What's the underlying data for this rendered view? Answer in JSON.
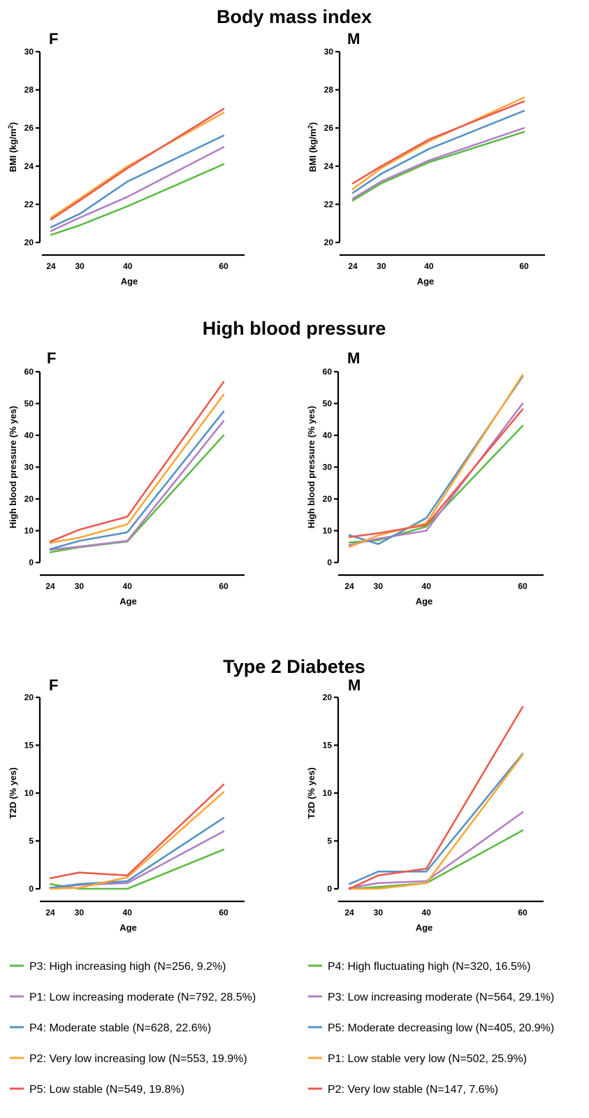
{
  "colors": {
    "green": "#5dbb46",
    "purple": "#b27fc6",
    "blue": "#5592c4",
    "orange": "#f9a63a",
    "red": "#ee5a4e"
  },
  "chart_data": [
    {
      "type": "line",
      "section": "bmi",
      "section_title": "Body mass index",
      "panel_label": "F",
      "xlabel": "Age",
      "ylabel": "BMI (kg/m",
      "ylabel_superscript": "2",
      "ylabel_suffix": ")",
      "x": [
        24,
        30,
        40,
        60
      ],
      "xticks": [
        24,
        30,
        40,
        60
      ],
      "xlim": [
        22,
        66
      ],
      "ylim": [
        20,
        30
      ],
      "yticks": [
        20,
        22,
        24,
        26,
        28,
        30
      ],
      "series": [
        {
          "color": "green",
          "values": [
            20.4,
            20.9,
            21.9,
            24.1
          ]
        },
        {
          "color": "purple",
          "values": [
            20.6,
            21.3,
            22.4,
            25.0
          ]
        },
        {
          "color": "blue",
          "values": [
            20.8,
            21.5,
            23.2,
            25.6
          ]
        },
        {
          "color": "orange",
          "values": [
            21.3,
            22.3,
            24.0,
            26.8
          ]
        },
        {
          "color": "red",
          "values": [
            21.2,
            22.2,
            23.9,
            27.0
          ]
        }
      ]
    },
    {
      "type": "line",
      "section": "bmi",
      "panel_label": "M",
      "xlabel": "Age",
      "ylabel": "BMI (kg/m",
      "ylabel_superscript": "2",
      "ylabel_suffix": ")",
      "x": [
        24,
        30,
        40,
        60
      ],
      "xticks": [
        24,
        30,
        40,
        60
      ],
      "xlim": [
        22,
        66
      ],
      "ylim": [
        20,
        30
      ],
      "yticks": [
        20,
        22,
        24,
        26,
        28,
        30
      ],
      "series": [
        {
          "color": "green",
          "values": [
            22.2,
            23.1,
            24.2,
            25.8
          ]
        },
        {
          "color": "purple",
          "values": [
            22.3,
            23.2,
            24.3,
            26.0
          ]
        },
        {
          "color": "blue",
          "values": [
            22.6,
            23.6,
            24.9,
            26.9
          ]
        },
        {
          "color": "orange",
          "values": [
            22.8,
            23.9,
            25.3,
            27.6
          ]
        },
        {
          "color": "red",
          "values": [
            23.1,
            24.0,
            25.4,
            27.4
          ]
        }
      ]
    },
    {
      "type": "line",
      "section": "bp",
      "section_title": "High blood pressure",
      "panel_label": "F",
      "xlabel": "Age",
      "ylabel": "High blood pressure (% yes)",
      "x": [
        24,
        30,
        40,
        60
      ],
      "xticks": [
        24,
        30,
        40,
        60
      ],
      "xlim": [
        22,
        66
      ],
      "ylim": [
        0,
        60
      ],
      "yticks": [
        0,
        10,
        20,
        30,
        40,
        50,
        60
      ],
      "series": [
        {
          "color": "green",
          "values": [
            3.2,
            4.8,
            6.6,
            40.0
          ]
        },
        {
          "color": "purple",
          "values": [
            4.0,
            5.0,
            6.8,
            44.5
          ]
        },
        {
          "color": "blue",
          "values": [
            4.2,
            6.8,
            9.5,
            47.5
          ]
        },
        {
          "color": "orange",
          "values": [
            6.2,
            7.8,
            12.0,
            52.8
          ]
        },
        {
          "color": "red",
          "values": [
            6.6,
            10.3,
            14.4,
            56.8
          ]
        }
      ]
    },
    {
      "type": "line",
      "section": "bp",
      "panel_label": "M",
      "xlabel": "Age",
      "ylabel": "High blood pressure (% yes)",
      "x": [
        24,
        30,
        40,
        60
      ],
      "xticks": [
        24,
        30,
        40,
        60
      ],
      "xlim": [
        22,
        66
      ],
      "ylim": [
        0,
        60
      ],
      "yticks": [
        0,
        10,
        20,
        30,
        40,
        50,
        60
      ],
      "series": [
        {
          "color": "green",
          "values": [
            6.3,
            7.0,
            11.3,
            43.0
          ]
        },
        {
          "color": "purple",
          "values": [
            5.5,
            7.5,
            10.0,
            50.0
          ]
        },
        {
          "color": "blue",
          "values": [
            8.6,
            5.8,
            14.0,
            58.5
          ]
        },
        {
          "color": "orange",
          "values": [
            4.9,
            8.5,
            12.4,
            59.0
          ]
        },
        {
          "color": "red",
          "values": [
            8.0,
            9.2,
            11.8,
            48.2
          ]
        }
      ]
    },
    {
      "type": "line",
      "section": "t2d",
      "section_title": "Type 2 Diabetes",
      "panel_label": "F",
      "xlabel": "Age",
      "ylabel": "T2D (% yes)",
      "x": [
        24,
        30,
        40,
        60
      ],
      "xticks": [
        24,
        30,
        40,
        60
      ],
      "xlim": [
        22,
        66
      ],
      "ylim": [
        0,
        20
      ],
      "yticks": [
        0,
        5,
        10,
        15,
        20
      ],
      "series": [
        {
          "color": "green",
          "values": [
            0.5,
            0.0,
            0.0,
            4.1
          ]
        },
        {
          "color": "purple",
          "values": [
            0.1,
            0.4,
            0.6,
            6.0
          ]
        },
        {
          "color": "blue",
          "values": [
            0.1,
            0.5,
            0.8,
            7.4
          ]
        },
        {
          "color": "orange",
          "values": [
            0.0,
            0.1,
            1.2,
            10.1
          ]
        },
        {
          "color": "red",
          "values": [
            1.1,
            1.7,
            1.4,
            10.9
          ]
        }
      ]
    },
    {
      "type": "line",
      "section": "t2d",
      "panel_label": "M",
      "xlabel": "Age",
      "ylabel": "T2D (% yes)",
      "x": [
        24,
        30,
        40,
        60
      ],
      "xticks": [
        24,
        30,
        40,
        60
      ],
      "xlim": [
        22,
        66
      ],
      "ylim": [
        0,
        20
      ],
      "yticks": [
        0,
        5,
        10,
        15,
        20
      ],
      "series": [
        {
          "color": "green",
          "values": [
            0.0,
            0.2,
            0.6,
            6.1
          ]
        },
        {
          "color": "purple",
          "values": [
            0.1,
            0.6,
            0.8,
            8.0
          ]
        },
        {
          "color": "blue",
          "values": [
            0.5,
            1.8,
            1.8,
            14.1
          ]
        },
        {
          "color": "orange",
          "values": [
            0.0,
            0.0,
            0.6,
            14.0
          ]
        },
        {
          "color": "red",
          "values": [
            0.0,
            1.4,
            2.1,
            19.0
          ]
        }
      ]
    }
  ],
  "legend": {
    "left": [
      {
        "color": "green",
        "label": "P3: High increasing high (N=256, 9.2%)"
      },
      {
        "color": "purple",
        "label": "P1: Low increasing moderate (N=792, 28.5%)"
      },
      {
        "color": "blue",
        "label": "P4: Moderate stable (N=628, 22.6%)"
      },
      {
        "color": "orange",
        "label": "P2: Very low increasing low (N=553, 19.9%)"
      },
      {
        "color": "red",
        "label": "P5: Low stable (N=549, 19.8%)"
      }
    ],
    "right": [
      {
        "color": "green",
        "label": "P4: High fluctuating high (N=320, 16.5%)"
      },
      {
        "color": "purple",
        "label": "P3: Low increasing moderate (N=564, 29.1%)"
      },
      {
        "color": "blue",
        "label": "P5: Moderate decreasing low (N=405, 20.9%)"
      },
      {
        "color": "orange",
        "label": "P1: Low stable very low (N=502, 25.9%)"
      },
      {
        "color": "red",
        "label": "P2: Very low stable (N=147, 7.6%)"
      }
    ]
  }
}
